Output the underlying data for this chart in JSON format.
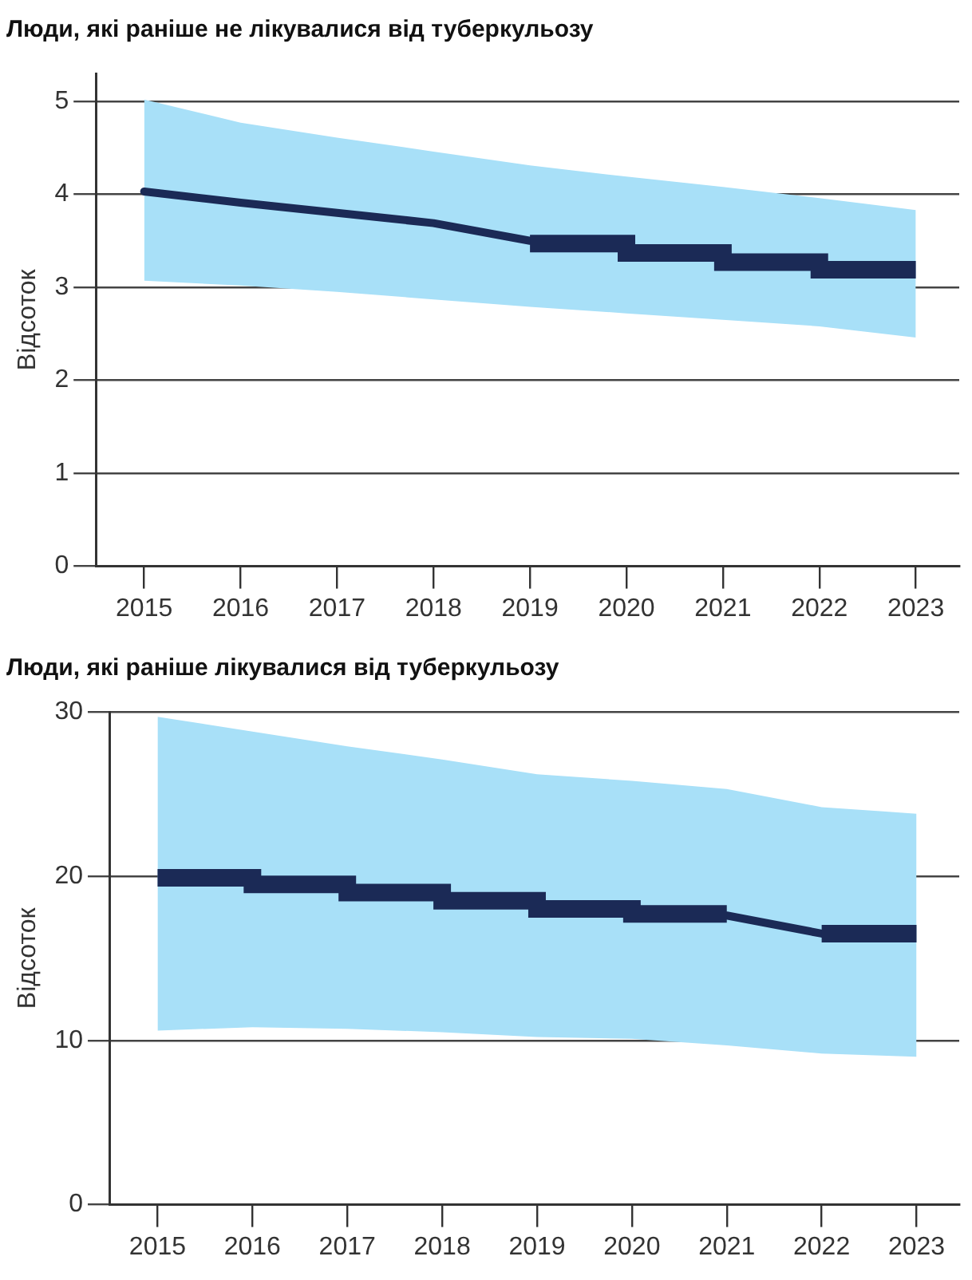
{
  "chart_data": [
    {
      "type": "line",
      "title": "Люди, які раніше не лікувалися від туберкульозу",
      "ylabel": "Відсоток",
      "xlim": [
        2014.5,
        2023.45
      ],
      "xticks": [
        2015,
        2016,
        2017,
        2018,
        2019,
        2020,
        2021,
        2022,
        2023
      ],
      "ylim": [
        0,
        5.3
      ],
      "yticks": [
        0,
        1,
        2,
        3,
        4,
        5
      ],
      "grid": "y",
      "legend": false,
      "series": [
        {
          "type": "area",
          "color": "#a8e0f8",
          "x": [
            2015,
            2016,
            2017,
            2018,
            2019,
            2020,
            2021,
            2022,
            2023
          ],
          "values": [
            null,
            null,
            null,
            null,
            null,
            null,
            null,
            null,
            null
          ],
          "lower": [
            3.07,
            3.02,
            2.95,
            2.87,
            2.79,
            2.72,
            2.65,
            2.58,
            2.46
          ],
          "upper": [
            5.02,
            4.77,
            4.61,
            4.46,
            4.31,
            4.19,
            4.08,
            3.96,
            3.83
          ]
        },
        {
          "type": "line",
          "color": "#1b2a56",
          "x": [
            2015,
            2016,
            2017,
            2018,
            2019
          ],
          "values": [
            4.03,
            3.91,
            3.8,
            3.69,
            3.5
          ]
        },
        {
          "type": "step",
          "color": "#1b2a56",
          "x": [
            2019,
            2020,
            2021,
            2022,
            2023
          ],
          "values": [
            3.47,
            3.37,
            3.27,
            3.19,
            3.19
          ]
        }
      ]
    },
    {
      "type": "line",
      "title": "Люди, які раніше лікувалися від туберкульозу",
      "ylabel": "Відсоток",
      "xlim": [
        2014.5,
        2023.45
      ],
      "xticks": [
        2015,
        2016,
        2017,
        2018,
        2019,
        2020,
        2021,
        2022,
        2023
      ],
      "ylim": [
        0,
        30
      ],
      "yticks": [
        0,
        10,
        20,
        30
      ],
      "grid": "y",
      "legend": false,
      "series": [
        {
          "type": "area",
          "color": "#a8e0f8",
          "x": [
            2015,
            2016,
            2017,
            2018,
            2019,
            2020,
            2021,
            2022,
            2023
          ],
          "values": [
            null,
            null,
            null,
            null,
            null,
            null,
            null,
            null,
            null
          ],
          "lower": [
            10.6,
            10.8,
            10.7,
            10.5,
            10.2,
            10.1,
            9.7,
            9.2,
            9.0
          ],
          "upper": [
            29.7,
            28.8,
            27.9,
            27.1,
            26.2,
            25.8,
            25.3,
            24.2,
            23.8
          ]
        },
        {
          "type": "step",
          "color": "#1b2a56",
          "x": [
            2015,
            2016,
            2017,
            2018,
            2019,
            2020,
            2021
          ],
          "values": [
            19.9,
            19.5,
            19.0,
            18.5,
            18.0,
            17.7,
            17.7
          ]
        },
        {
          "type": "line",
          "color": "#1b2a56",
          "x": [
            2021,
            2022
          ],
          "values": [
            17.6,
            16.5
          ]
        },
        {
          "type": "step",
          "color": "#1b2a56",
          "x": [
            2022,
            2023
          ],
          "values": [
            16.5,
            16.5
          ]
        }
      ]
    }
  ]
}
